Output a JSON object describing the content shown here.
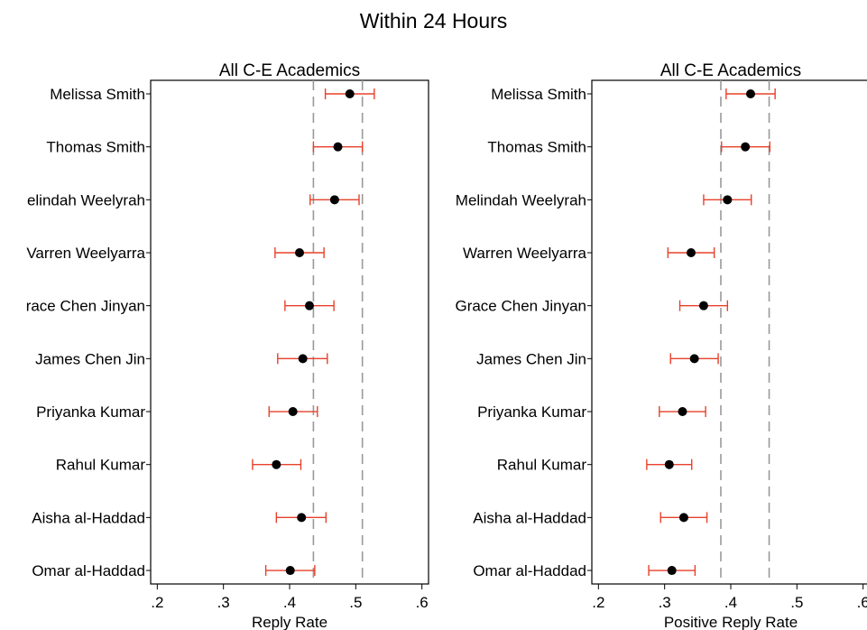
{
  "figure_title": "Within 24 Hours",
  "chart_data": [
    {
      "type": "scatter",
      "subtype": "point-estimate-with-error-bars",
      "title": "All C-E Academics",
      "xlabel": "Reply Rate",
      "ylabel": "",
      "categories": [
        "Melissa Smith",
        "Thomas Smith",
        "Melindah Weelyrah",
        "Warren Weelyarra",
        "Grace Chen Jinyan",
        "James Chen Jin",
        "Priyanka Kumar",
        "Rahul Kumar",
        "Aisha al-Haddad",
        "Omar al-Haddad"
      ],
      "category_labels_shown": [
        "Melissa Smith",
        "Thomas Smith",
        "elindah Weelyrah",
        "Varren Weelyarra",
        "race Chen Jinyan",
        "James Chen Jin",
        "Priyanka Kumar",
        "Rahul Kumar",
        "Aisha al-Haddad",
        "Omar al-Haddad"
      ],
      "estimates": [
        0.491,
        0.473,
        0.468,
        0.415,
        0.43,
        0.42,
        0.405,
        0.38,
        0.418,
        0.401
      ],
      "ci_lower": [
        0.454,
        0.436,
        0.431,
        0.378,
        0.393,
        0.382,
        0.369,
        0.344,
        0.38,
        0.364
      ],
      "ci_upper": [
        0.528,
        0.51,
        0.505,
        0.452,
        0.467,
        0.457,
        0.442,
        0.417,
        0.455,
        0.438
      ],
      "reference_lines": [
        0.436,
        0.51
      ],
      "xticks": [
        ".2",
        ".3",
        ".4",
        ".5",
        ".6"
      ],
      "xtick_values": [
        0.2,
        0.3,
        0.4,
        0.5,
        0.6
      ],
      "xlim": [
        0.19,
        0.61
      ],
      "grid": false,
      "marker_color": "#000000",
      "errorbar_color": "#e8402a",
      "reference_line_color": "#999999"
    },
    {
      "type": "scatter",
      "subtype": "point-estimate-with-error-bars",
      "title": "All C-E Academics",
      "xlabel": "Positive Reply Rate",
      "ylabel": "",
      "categories": [
        "Melissa Smith",
        "Thomas Smith",
        "Melindah Weelyrah",
        "Warren Weelyarra",
        "Grace Chen Jinyan",
        "James Chen Jin",
        "Priyanka Kumar",
        "Rahul Kumar",
        "Aisha al-Haddad",
        "Omar al-Haddad"
      ],
      "category_labels_shown": [
        "Melissa Smith",
        "Thomas Smith",
        "Melindah Weelyrah",
        "Warren Weelyarra",
        "Grace Chen Jinyan",
        "James Chen Jin",
        "Priyanka Kumar",
        "Rahul Kumar",
        "Aisha al-Haddad",
        "Omar al-Haddad"
      ],
      "estimates": [
        0.43,
        0.422,
        0.395,
        0.34,
        0.359,
        0.345,
        0.327,
        0.307,
        0.329,
        0.311
      ],
      "ci_lower": [
        0.393,
        0.386,
        0.359,
        0.305,
        0.323,
        0.309,
        0.292,
        0.273,
        0.294,
        0.276
      ],
      "ci_upper": [
        0.467,
        0.459,
        0.431,
        0.375,
        0.395,
        0.381,
        0.362,
        0.341,
        0.364,
        0.346
      ],
      "reference_lines": [
        0.385,
        0.458
      ],
      "xticks": [
        ".2",
        ".3",
        ".4",
        ".5",
        ".6"
      ],
      "xtick_values": [
        0.2,
        0.3,
        0.4,
        0.5,
        0.6
      ],
      "xlim": [
        0.19,
        0.61
      ],
      "grid": false,
      "marker_color": "#000000",
      "errorbar_color": "#e8402a",
      "reference_line_color": "#999999"
    }
  ]
}
